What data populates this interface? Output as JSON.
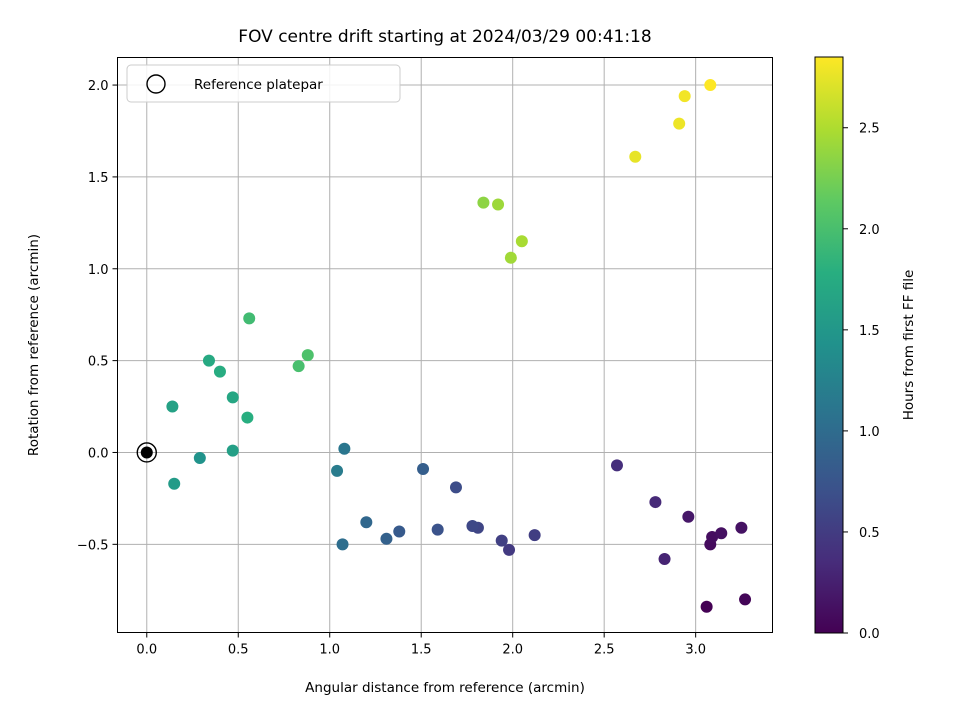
{
  "chart_data": {
    "type": "scatter",
    "title": "FOV centre drift starting at 2024/03/29 00:41:18",
    "xlabel": "Angular distance from reference (arcmin)",
    "ylabel": "Rotation from reference (arcmin)",
    "xlim": [
      -0.16,
      3.42
    ],
    "ylim": [
      -0.98,
      2.15
    ],
    "xticks": [
      0.0,
      0.5,
      1.0,
      1.5,
      2.0,
      2.5,
      3.0
    ],
    "xtick_labels": [
      "0.0",
      "0.5",
      "1.0",
      "1.5",
      "2.0",
      "2.5",
      "3.0"
    ],
    "yticks": [
      -0.5,
      0.0,
      0.5,
      1.0,
      1.5,
      2.0
    ],
    "ytick_labels": [
      "−0.5",
      "0.0",
      "0.5",
      "1.0",
      "1.5",
      "2.0"
    ],
    "grid": true,
    "legend": {
      "position": "top-left",
      "entries": [
        "Reference platepar"
      ]
    },
    "reference_point": {
      "x": 0.0,
      "y": 0.0
    },
    "colorbar": {
      "label": "Hours from first FF file",
      "colormap": "viridis",
      "range": [
        0.0,
        2.85
      ],
      "ticks": [
        0.0,
        0.5,
        1.0,
        1.5,
        2.0,
        2.5
      ],
      "tick_labels": [
        "0.0",
        "0.5",
        "1.0",
        "1.5",
        "2.0",
        "2.5"
      ]
    },
    "points": [
      {
        "x": 3.06,
        "y": -0.84,
        "hours": 0.0
      },
      {
        "x": 3.27,
        "y": -0.8,
        "hours": 0.04
      },
      {
        "x": 3.08,
        "y": -0.5,
        "hours": 0.08
      },
      {
        "x": 3.09,
        "y": -0.46,
        "hours": 0.1
      },
      {
        "x": 3.14,
        "y": -0.44,
        "hours": 0.12
      },
      {
        "x": 3.25,
        "y": -0.41,
        "hours": 0.14
      },
      {
        "x": 2.96,
        "y": -0.35,
        "hours": 0.18
      },
      {
        "x": 2.83,
        "y": -0.58,
        "hours": 0.28
      },
      {
        "x": 2.78,
        "y": -0.27,
        "hours": 0.33
      },
      {
        "x": 2.57,
        "y": -0.07,
        "hours": 0.38
      },
      {
        "x": 2.12,
        "y": -0.45,
        "hours": 0.52
      },
      {
        "x": 1.98,
        "y": -0.53,
        "hours": 0.48
      },
      {
        "x": 1.94,
        "y": -0.48,
        "hours": 0.54
      },
      {
        "x": 1.81,
        "y": -0.41,
        "hours": 0.59
      },
      {
        "x": 1.78,
        "y": -0.4,
        "hours": 0.62
      },
      {
        "x": 1.69,
        "y": -0.19,
        "hours": 0.66
      },
      {
        "x": 1.59,
        "y": -0.42,
        "hours": 0.72
      },
      {
        "x": 1.51,
        "y": -0.09,
        "hours": 0.85
      },
      {
        "x": 1.38,
        "y": -0.43,
        "hours": 0.8
      },
      {
        "x": 1.31,
        "y": -0.47,
        "hours": 0.88
      },
      {
        "x": 1.2,
        "y": -0.38,
        "hours": 0.95
      },
      {
        "x": 1.07,
        "y": -0.5,
        "hours": 1.02
      },
      {
        "x": 1.08,
        "y": 0.02,
        "hours": 1.12
      },
      {
        "x": 1.04,
        "y": -0.1,
        "hours": 1.18
      },
      {
        "x": 0.29,
        "y": -0.03,
        "hours": 1.45
      },
      {
        "x": 0.15,
        "y": -0.17,
        "hours": 1.55
      },
      {
        "x": 0.47,
        "y": 0.01,
        "hours": 1.6
      },
      {
        "x": 0.14,
        "y": 0.25,
        "hours": 1.62
      },
      {
        "x": 0.34,
        "y": 0.5,
        "hours": 1.72
      },
      {
        "x": 0.4,
        "y": 0.44,
        "hours": 1.76
      },
      {
        "x": 0.47,
        "y": 0.3,
        "hours": 1.68
      },
      {
        "x": 0.55,
        "y": 0.19,
        "hours": 1.78
      },
      {
        "x": 0.56,
        "y": 0.73,
        "hours": 1.95
      },
      {
        "x": 0.83,
        "y": 0.47,
        "hours": 2.0
      },
      {
        "x": 0.88,
        "y": 0.53,
        "hours": 2.03
      },
      {
        "x": 1.84,
        "y": 1.36,
        "hours": 2.35
      },
      {
        "x": 1.92,
        "y": 1.35,
        "hours": 2.42
      },
      {
        "x": 1.99,
        "y": 1.06,
        "hours": 2.44
      },
      {
        "x": 2.05,
        "y": 1.15,
        "hours": 2.47
      },
      {
        "x": 2.67,
        "y": 1.61,
        "hours": 2.75
      },
      {
        "x": 2.91,
        "y": 1.79,
        "hours": 2.78
      },
      {
        "x": 2.94,
        "y": 1.94,
        "hours": 2.8
      },
      {
        "x": 3.08,
        "y": 2.0,
        "hours": 2.85
      }
    ]
  }
}
